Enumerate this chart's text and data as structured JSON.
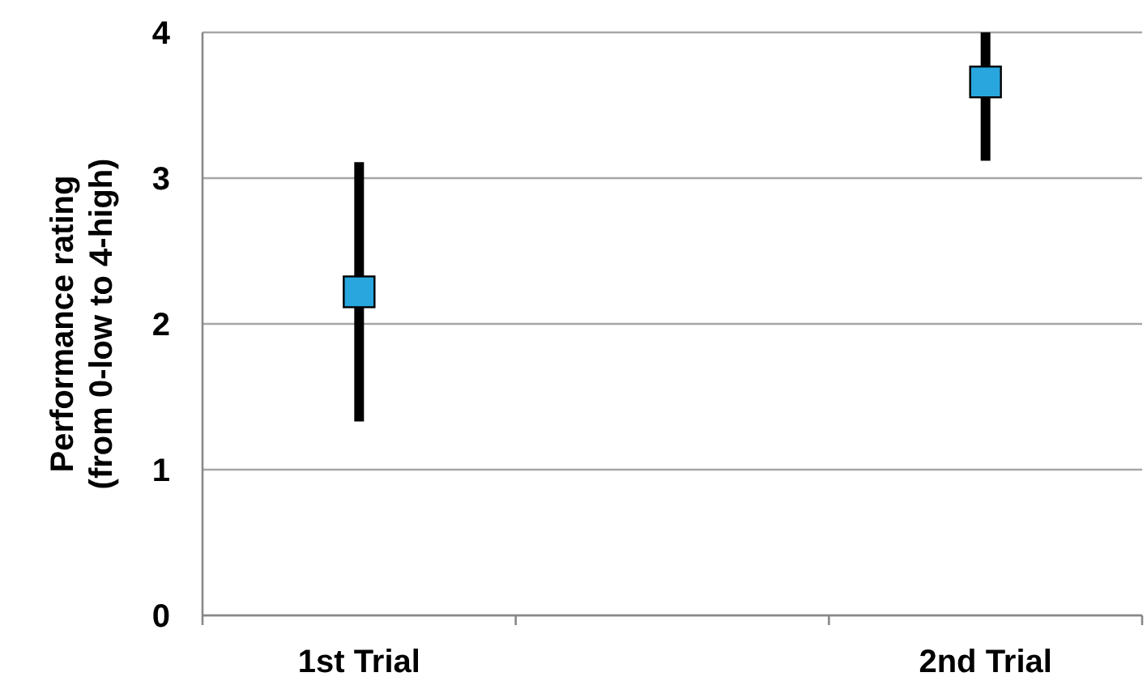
{
  "chart_data": {
    "type": "scatter",
    "ylabel": "Performance rating\n(from 0-low to 4-high)",
    "categories": [
      "1st Trial",
      null,
      "2nd Trial"
    ],
    "series": [
      {
        "color": "#29a6de",
        "values": [
          2.22,
          null,
          3.66
        ],
        "errors": [
          [
            1.33,
            3.11
          ],
          null,
          [
            3.12,
            4
          ]
        ]
      }
    ],
    "ylim": [
      0,
      4
    ],
    "yticks": [
      0,
      1,
      2,
      3,
      4
    ],
    "grid": "y",
    "marker": "square"
  }
}
